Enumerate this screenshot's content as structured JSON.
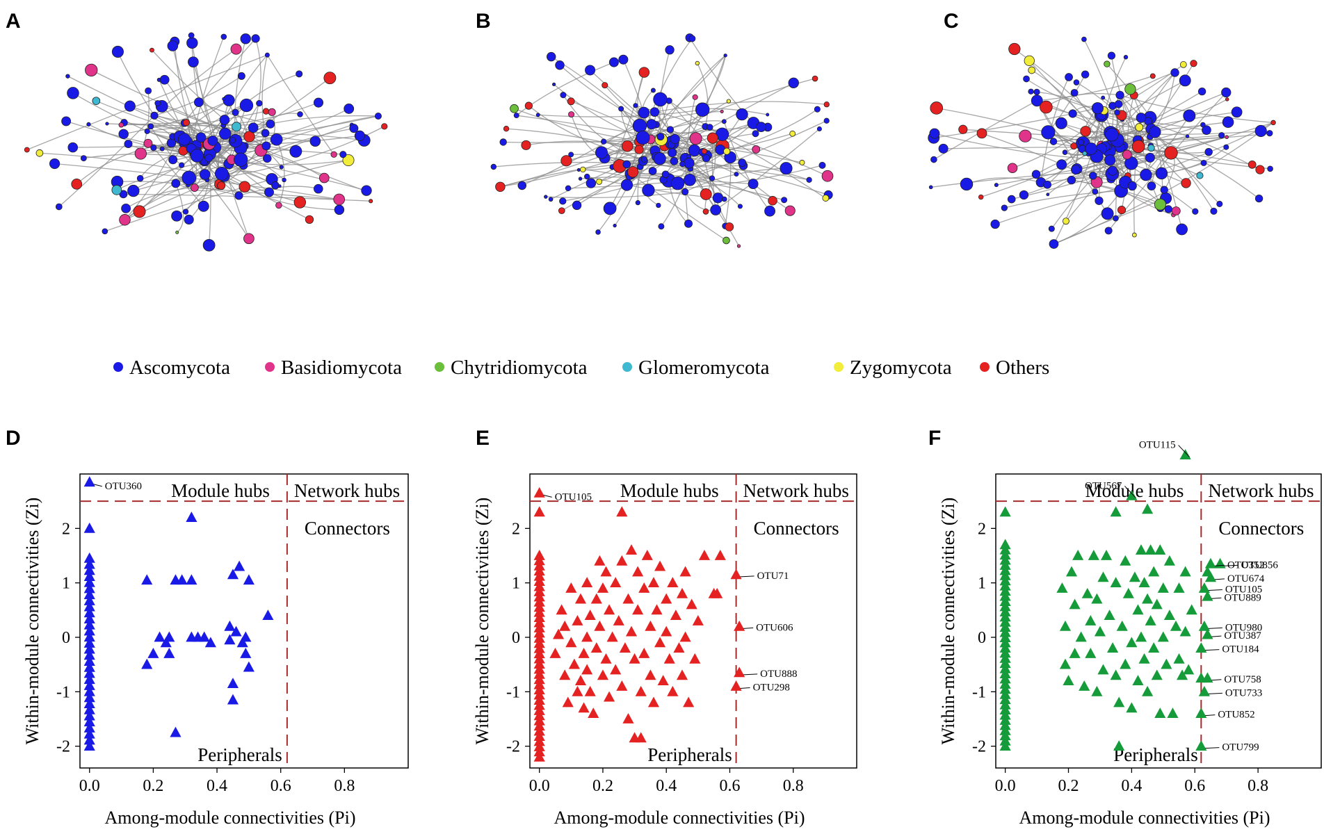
{
  "colors": {
    "Ascomycota": "#1a1ae6",
    "Basidiomycota": "#e0338a",
    "Chytridiomycota": "#6cbf3a",
    "Glomeromycota": "#3fb8d0",
    "Zygomycota": "#f2ec3a",
    "Others": "#e52222",
    "threshold": "#a52a2a",
    "panelD": "#1a1ae6",
    "panelE": "#e52222",
    "panelF": "#169b3a"
  },
  "network_panels": [
    {
      "letter": "A",
      "seed": 11
    },
    {
      "letter": "B",
      "seed": 29
    },
    {
      "letter": "C",
      "seed": 47
    }
  ],
  "legend": [
    {
      "label": "Ascomycota",
      "color": "#1a1ae6"
    },
    {
      "label": "Basidiomycota",
      "color": "#e0338a"
    },
    {
      "label": "Chytridiomycota",
      "color": "#6cbf3a"
    },
    {
      "label": "Glomeromycota",
      "color": "#3fb8d0"
    },
    {
      "label": "Zygomycota",
      "color": "#f2ec3a"
    },
    {
      "label": "Others",
      "color": "#e52222"
    }
  ],
  "chart_data": [
    {
      "type": "scatter",
      "letter": "D",
      "color": "#1a1ae6",
      "xlabel": "Among-module connectivities (Pi)",
      "ylabel": "Within-module connectivities (Zi)",
      "xlim": [
        -0.03,
        1.0
      ],
      "ylim": [
        -2.4,
        3.0
      ],
      "xticks": [
        "0.0",
        "0.2",
        "0.4",
        "0.6",
        "0.8"
      ],
      "xtick_values": [
        0,
        0.2,
        0.4,
        0.6,
        0.8
      ],
      "yticks": [
        "-2",
        "-1",
        "0",
        "1",
        "2"
      ],
      "ytick_values": [
        -2,
        -1,
        0,
        1,
        2
      ],
      "thresholds": {
        "pi": 0.62,
        "zi": 2.5
      },
      "region_labels": {
        "module_hubs": "Module hubs",
        "network_hubs": "Network hubs",
        "connectors": "Connectors",
        "peripherals": "Peripherals"
      },
      "zero_column": {
        "x": 0.0,
        "y_min": -2.0,
        "y_max": 1.45,
        "count": 32,
        "extra_y": [
          2.0
        ]
      },
      "points": [
        [
          0.0,
          2.85
        ],
        [
          0.18,
          1.05
        ],
        [
          0.18,
          -0.5
        ],
        [
          0.2,
          -0.3
        ],
        [
          0.22,
          0.0
        ],
        [
          0.24,
          -0.1
        ],
        [
          0.25,
          -0.3
        ],
        [
          0.25,
          0.0
        ],
        [
          0.27,
          1.05
        ],
        [
          0.27,
          -1.75
        ],
        [
          0.29,
          1.05
        ],
        [
          0.32,
          2.2
        ],
        [
          0.32,
          0.0
        ],
        [
          0.32,
          1.05
        ],
        [
          0.34,
          0.0
        ],
        [
          0.36,
          0.0
        ],
        [
          0.38,
          -0.1
        ],
        [
          0.44,
          0.2
        ],
        [
          0.44,
          -0.05
        ],
        [
          0.45,
          1.15
        ],
        [
          0.45,
          -0.85
        ],
        [
          0.45,
          -1.15
        ],
        [
          0.46,
          0.1
        ],
        [
          0.47,
          1.3
        ],
        [
          0.48,
          -0.1
        ],
        [
          0.49,
          0.0
        ],
        [
          0.5,
          1.05
        ],
        [
          0.49,
          -0.3
        ],
        [
          0.5,
          -0.55
        ],
        [
          0.56,
          0.4
        ]
      ],
      "labels": [
        {
          "text": "OTU360",
          "x": 0.0,
          "y": 2.85
        }
      ]
    },
    {
      "type": "scatter",
      "letter": "E",
      "color": "#e52222",
      "xlabel": "Among-module connectivities (Pi)",
      "ylabel": "Within-module connectivities (Zi)",
      "xlim": [
        -0.03,
        1.0
      ],
      "ylim": [
        -2.4,
        3.0
      ],
      "xticks": [
        "0.0",
        "0.2",
        "0.4",
        "0.6",
        "0.8"
      ],
      "xtick_values": [
        0,
        0.2,
        0.4,
        0.6,
        0.8
      ],
      "yticks": [
        "-2",
        "-1",
        "0",
        "1",
        "2"
      ],
      "ytick_values": [
        -2,
        -1,
        0,
        1,
        2
      ],
      "thresholds": {
        "pi": 0.62,
        "zi": 2.5
      },
      "region_labels": {
        "module_hubs": "Module hubs",
        "network_hubs": "Network hubs",
        "connectors": "Connectors",
        "peripherals": "Peripherals"
      },
      "zero_column": {
        "x": 0.0,
        "y_min": -2.2,
        "y_max": 1.5,
        "count": 40,
        "extra_y": [
          2.3
        ]
      },
      "points": [
        [
          0.0,
          2.65
        ],
        [
          0.26,
          2.3
        ],
        [
          0.05,
          -0.3
        ],
        [
          0.06,
          0.05
        ],
        [
          0.07,
          0.5
        ],
        [
          0.08,
          -0.7
        ],
        [
          0.08,
          0.2
        ],
        [
          0.09,
          -1.2
        ],
        [
          0.1,
          -0.1
        ],
        [
          0.1,
          0.9
        ],
        [
          0.11,
          -0.5
        ],
        [
          0.12,
          0.3
        ],
        [
          0.12,
          -1.0
        ],
        [
          0.13,
          -0.8
        ],
        [
          0.13,
          0.7
        ],
        [
          0.14,
          -0.3
        ],
        [
          0.14,
          -1.3
        ],
        [
          0.15,
          1.0
        ],
        [
          0.15,
          0.0
        ],
        [
          0.15,
          -0.6
        ],
        [
          0.16,
          0.4
        ],
        [
          0.16,
          -1.0
        ],
        [
          0.17,
          -1.4
        ],
        [
          0.18,
          0.7
        ],
        [
          0.18,
          -0.2
        ],
        [
          0.19,
          1.4
        ],
        [
          0.19,
          0.2
        ],
        [
          0.2,
          -0.7
        ],
        [
          0.2,
          0.9
        ],
        [
          0.21,
          1.2
        ],
        [
          0.21,
          -0.4
        ],
        [
          0.22,
          0.5
        ],
        [
          0.22,
          -1.1
        ],
        [
          0.23,
          0.0
        ],
        [
          0.24,
          1.0
        ],
        [
          0.24,
          -0.6
        ],
        [
          0.25,
          0.3
        ],
        [
          0.26,
          -0.9
        ],
        [
          0.26,
          1.4
        ],
        [
          0.27,
          -0.2
        ],
        [
          0.28,
          0.7
        ],
        [
          0.28,
          -1.5
        ],
        [
          0.29,
          1.6
        ],
        [
          0.29,
          0.1
        ],
        [
          0.3,
          -0.4
        ],
        [
          0.3,
          -1.85
        ],
        [
          0.31,
          1.2
        ],
        [
          0.31,
          0.5
        ],
        [
          0.32,
          -1.85
        ],
        [
          0.32,
          -1.0
        ],
        [
          0.33,
          0.9
        ],
        [
          0.33,
          -0.3
        ],
        [
          0.34,
          1.5
        ],
        [
          0.35,
          0.2
        ],
        [
          0.35,
          -0.7
        ],
        [
          0.36,
          1.0
        ],
        [
          0.36,
          -1.2
        ],
        [
          0.37,
          0.5
        ],
        [
          0.38,
          -0.1
        ],
        [
          0.38,
          1.3
        ],
        [
          0.39,
          -0.8
        ],
        [
          0.4,
          0.7
        ],
        [
          0.4,
          0.1
        ],
        [
          0.41,
          -0.4
        ],
        [
          0.42,
          1.0
        ],
        [
          0.42,
          -1.0
        ],
        [
          0.43,
          0.4
        ],
        [
          0.44,
          -0.2
        ],
        [
          0.45,
          0.8
        ],
        [
          0.45,
          -0.7
        ],
        [
          0.46,
          1.2
        ],
        [
          0.46,
          0.0
        ],
        [
          0.47,
          -1.2
        ],
        [
          0.48,
          0.6
        ],
        [
          0.49,
          -0.4
        ],
        [
          0.5,
          0.3
        ],
        [
          0.52,
          1.5
        ],
        [
          0.55,
          0.8
        ],
        [
          0.56,
          0.8
        ],
        [
          0.57,
          1.5
        ]
      ],
      "connectors": [
        [
          0.62,
          1.15
        ],
        [
          0.63,
          0.2
        ],
        [
          0.63,
          -0.65
        ],
        [
          0.62,
          -0.9
        ]
      ],
      "labels": [
        {
          "text": "OTU105",
          "x": 0.0,
          "y": 2.65
        },
        {
          "text": "OTU71",
          "x": 0.62,
          "y": 1.15
        },
        {
          "text": "OTU606",
          "x": 0.63,
          "y": 0.2
        },
        {
          "text": "OTU888",
          "x": 0.63,
          "y": -0.65
        },
        {
          "text": "OTU298",
          "x": 0.62,
          "y": -0.9
        }
      ]
    },
    {
      "type": "scatter",
      "letter": "F",
      "color": "#169b3a",
      "xlabel": "Among-module connectivities (Pi)",
      "ylabel": "Within-module connectivities (Zi)",
      "xlim": [
        -0.03,
        1.0
      ],
      "ylim": [
        -2.4,
        3.0
      ],
      "xticks": [
        "0.0",
        "0.2",
        "0.4",
        "0.6",
        "0.8"
      ],
      "xtick_values": [
        0,
        0.2,
        0.4,
        0.6,
        0.8
      ],
      "yticks": [
        "-2",
        "-1",
        "0",
        "1",
        "2"
      ],
      "ytick_values": [
        -2,
        -1,
        0,
        1,
        2
      ],
      "thresholds": {
        "pi": 0.62,
        "zi": 2.5
      },
      "region_labels": {
        "module_hubs": "Module hubs",
        "network_hubs": "Network hubs",
        "connectors": "Connectors",
        "peripherals": "Peripherals"
      },
      "zero_column": {
        "x": 0.0,
        "y_min": -2.0,
        "y_max": 1.7,
        "count": 40,
        "extra_y": [
          2.3
        ]
      },
      "points": [
        [
          0.57,
          3.35
        ],
        [
          0.4,
          2.6
        ],
        [
          0.35,
          2.3
        ],
        [
          0.45,
          2.35
        ],
        [
          0.18,
          0.9
        ],
        [
          0.19,
          0.2
        ],
        [
          0.19,
          -0.5
        ],
        [
          0.2,
          -0.8
        ],
        [
          0.21,
          1.2
        ],
        [
          0.22,
          0.6
        ],
        [
          0.22,
          -0.3
        ],
        [
          0.23,
          1.5
        ],
        [
          0.24,
          0.0
        ],
        [
          0.25,
          -0.9
        ],
        [
          0.26,
          0.8
        ],
        [
          0.27,
          0.3
        ],
        [
          0.27,
          -0.3
        ],
        [
          0.28,
          1.5
        ],
        [
          0.29,
          0.7
        ],
        [
          0.29,
          -1.0
        ],
        [
          0.3,
          0.1
        ],
        [
          0.31,
          1.1
        ],
        [
          0.31,
          -0.6
        ],
        [
          0.32,
          1.5
        ],
        [
          0.33,
          0.4
        ],
        [
          0.34,
          -0.2
        ],
        [
          0.35,
          1.0
        ],
        [
          0.35,
          -0.7
        ],
        [
          0.36,
          -1.2
        ],
        [
          0.36,
          -2.0
        ],
        [
          0.37,
          0.2
        ],
        [
          0.38,
          1.4
        ],
        [
          0.38,
          -0.5
        ],
        [
          0.39,
          0.8
        ],
        [
          0.4,
          -0.1
        ],
        [
          0.4,
          -1.3
        ],
        [
          0.41,
          1.1
        ],
        [
          0.42,
          0.5
        ],
        [
          0.42,
          -0.8
        ],
        [
          0.43,
          1.6
        ],
        [
          0.43,
          0.0
        ],
        [
          0.44,
          -0.4
        ],
        [
          0.44,
          1.0
        ],
        [
          0.45,
          0.7
        ],
        [
          0.45,
          -1.0
        ],
        [
          0.46,
          1.6
        ],
        [
          0.46,
          0.3
        ],
        [
          0.47,
          -0.2
        ],
        [
          0.47,
          1.2
        ],
        [
          0.48,
          -0.7
        ],
        [
          0.48,
          0.6
        ],
        [
          0.49,
          1.6
        ],
        [
          0.49,
          -1.4
        ],
        [
          0.5,
          0.0
        ],
        [
          0.5,
          0.9
        ],
        [
          0.51,
          -0.5
        ],
        [
          0.52,
          1.4
        ],
        [
          0.52,
          0.4
        ],
        [
          0.53,
          -1.4
        ],
        [
          0.54,
          0.2
        ],
        [
          0.55,
          -0.4
        ],
        [
          0.55,
          0.9
        ],
        [
          0.56,
          -0.7
        ],
        [
          0.57,
          0.1
        ],
        [
          0.57,
          1.2
        ],
        [
          0.58,
          -0.6
        ],
        [
          0.59,
          0.5
        ]
      ],
      "connectors": [
        [
          0.65,
          1.35
        ],
        [
          0.64,
          1.2
        ],
        [
          0.65,
          1.1
        ],
        [
          0.63,
          0.9
        ],
        [
          0.64,
          0.75
        ],
        [
          0.63,
          0.2
        ],
        [
          0.64,
          0.05
        ],
        [
          0.62,
          -0.2
        ],
        [
          0.62,
          -0.75
        ],
        [
          0.64,
          -0.75
        ],
        [
          0.63,
          -1.0
        ],
        [
          0.62,
          -1.4
        ],
        [
          0.62,
          -2.0
        ],
        [
          0.68,
          1.35
        ]
      ],
      "labels": [
        {
          "text": "OTU115",
          "x": 0.57,
          "y": 3.35
        },
        {
          "text": "OTU567",
          "x": 0.4,
          "y": 2.6
        },
        {
          "text": "OTU352",
          "x": 0.65,
          "y": 1.35
        },
        {
          "text": "OTU856",
          "x": 0.68,
          "y": 1.35
        },
        {
          "text": "OTU674",
          "x": 0.65,
          "y": 1.1
        },
        {
          "text": "OTU105",
          "x": 0.63,
          "y": 0.9
        },
        {
          "text": "OTU889",
          "x": 0.64,
          "y": 0.75
        },
        {
          "text": "OTU980",
          "x": 0.63,
          "y": 0.2
        },
        {
          "text": "OTU387",
          "x": 0.64,
          "y": 0.05
        },
        {
          "text": "OTU184",
          "x": 0.62,
          "y": -0.2
        },
        {
          "text": "OTU758",
          "x": 0.64,
          "y": -0.75
        },
        {
          "text": "OTU733",
          "x": 0.63,
          "y": -1.0
        },
        {
          "text": "OTU852",
          "x": 0.62,
          "y": -1.4
        },
        {
          "text": "OTU799",
          "x": 0.62,
          "y": -2.0
        }
      ]
    }
  ]
}
